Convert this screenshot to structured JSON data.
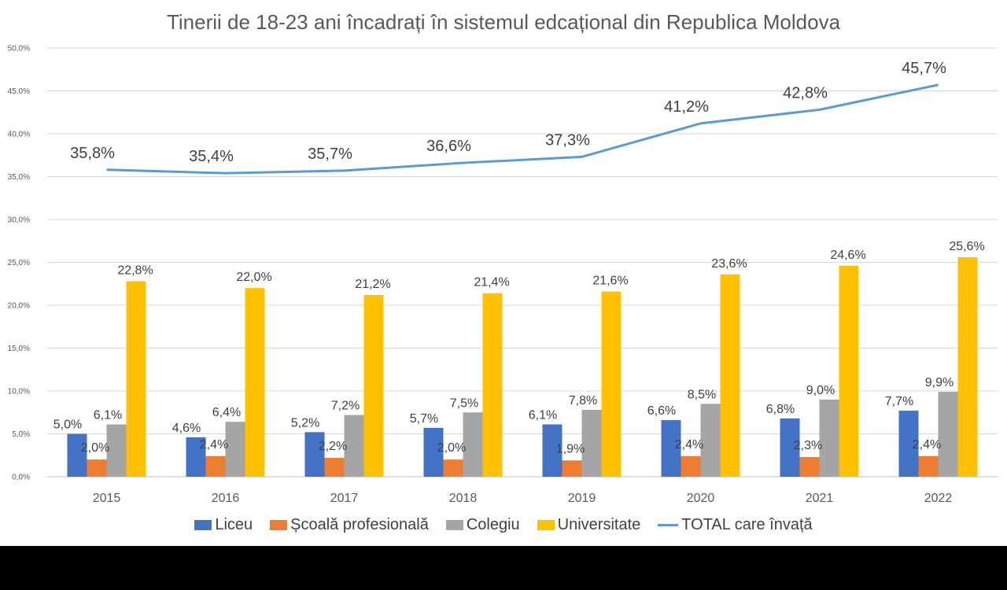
{
  "chart_data": {
    "type": "bar",
    "title": "Tinerii de 18-23 ani încadrați în sistemul edcațional din Republica Moldova",
    "categories": [
      "2015",
      "2016",
      "2017",
      "2018",
      "2019",
      "2020",
      "2021",
      "2022"
    ],
    "ylim": [
      0,
      50
    ],
    "yticks": [
      "0,0%",
      "5,0%",
      "10,0%",
      "15,0%",
      "20,0%",
      "25,0%",
      "30,0%",
      "35,0%",
      "40,0%",
      "45,0%",
      "50,0%"
    ],
    "grid": true,
    "legend_position": "bottom",
    "series": [
      {
        "name": "Liceu",
        "type": "bar",
        "color": "#4472C4",
        "values": [
          5.0,
          4.6,
          5.2,
          5.7,
          6.1,
          6.6,
          6.8,
          7.7
        ],
        "labels": [
          "5,0%",
          "4,6%",
          "5,2%",
          "5,7%",
          "6,1%",
          "6,6%",
          "6,8%",
          "7,7%"
        ]
      },
      {
        "name": "Școală profesională",
        "type": "bar",
        "color": "#ED7D31",
        "values": [
          2.0,
          2.4,
          2.2,
          2.0,
          1.9,
          2.4,
          2.3,
          2.4
        ],
        "labels": [
          "2,0%",
          "2,4%",
          "2,2%",
          "2,0%",
          "1,9%",
          "2,4%",
          "2,3%",
          "2,4%"
        ]
      },
      {
        "name": "Colegiu",
        "type": "bar",
        "color": "#A5A5A5",
        "values": [
          6.1,
          6.4,
          7.2,
          7.5,
          7.8,
          8.5,
          9.0,
          9.9
        ],
        "labels": [
          "6,1%",
          "6,4%",
          "7,2%",
          "7,5%",
          "7,8%",
          "8,5%",
          "9,0%",
          "9,9%"
        ]
      },
      {
        "name": "Universitate",
        "type": "bar",
        "color": "#FFC000",
        "values": [
          22.8,
          22.0,
          21.2,
          21.4,
          21.6,
          23.6,
          24.6,
          25.6
        ],
        "labels": [
          "22,8%",
          "22,0%",
          "21,2%",
          "21,4%",
          "21,6%",
          "23,6%",
          "24,6%",
          "25,6%"
        ]
      },
      {
        "name": "TOTAL care învață",
        "type": "line",
        "color": "#5B9BD5",
        "values": [
          35.8,
          35.4,
          35.7,
          36.6,
          37.3,
          41.2,
          42.8,
          45.7
        ],
        "labels": [
          "35,8%",
          "35,4%",
          "35,7%",
          "36,6%",
          "37,3%",
          "41,2%",
          "42,8%",
          "45,7%"
        ]
      }
    ]
  }
}
